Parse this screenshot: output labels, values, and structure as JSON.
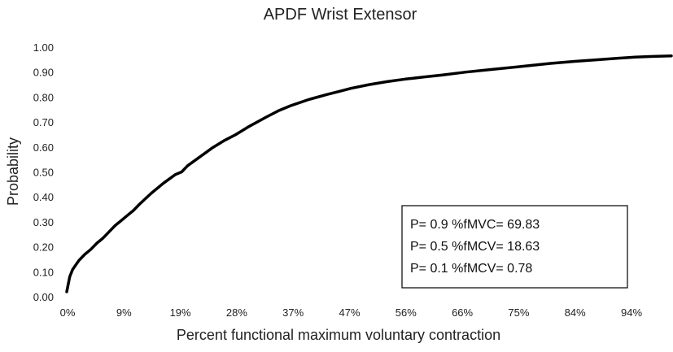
{
  "chart_data": {
    "type": "line",
    "title": "APDF Wrist Extensor",
    "xlabel": "Percent functional maximum voluntary contraction",
    "ylabel": "Probability",
    "x_tick_labels": [
      "0%",
      "9%",
      "19%",
      "28%",
      "37%",
      "47%",
      "56%",
      "66%",
      "75%",
      "84%",
      "94%"
    ],
    "y_tick_labels": [
      "0.00",
      "0.10",
      "0.20",
      "0.30",
      "0.40",
      "0.50",
      "0.60",
      "0.70",
      "0.80",
      "0.90",
      "1.00"
    ],
    "xlim": [
      0,
      100
    ],
    "ylim": [
      0,
      1
    ],
    "grid": false,
    "legend": "none",
    "series": [
      {
        "x": [
          0,
          0.5,
          1,
          2,
          3,
          4,
          5,
          6,
          7,
          8,
          9,
          10,
          11,
          12,
          14,
          16,
          18,
          19,
          20,
          22,
          24,
          26,
          28,
          30,
          33,
          35,
          37,
          40,
          43,
          45,
          47,
          50,
          53,
          56,
          59,
          62,
          66,
          70,
          75,
          80,
          84,
          88,
          92,
          94,
          97,
          100
        ],
        "y": [
          0.02,
          0.08,
          0.11,
          0.145,
          0.17,
          0.19,
          0.215,
          0.235,
          0.26,
          0.285,
          0.305,
          0.325,
          0.345,
          0.37,
          0.415,
          0.455,
          0.49,
          0.5,
          0.525,
          0.56,
          0.595,
          0.625,
          0.65,
          0.68,
          0.72,
          0.745,
          0.765,
          0.79,
          0.81,
          0.822,
          0.835,
          0.85,
          0.862,
          0.872,
          0.88,
          0.888,
          0.9,
          0.91,
          0.922,
          0.935,
          0.943,
          0.95,
          0.957,
          0.96,
          0.963,
          0.965
        ],
        "color": "#000000"
      }
    ],
    "annotation": {
      "lines": [
        "P= 0.9 %fMVC= 69.83",
        "P= 0.5 %fMCV=  18.63",
        "P= 0.1 %fMCV=  0.78"
      ]
    }
  }
}
